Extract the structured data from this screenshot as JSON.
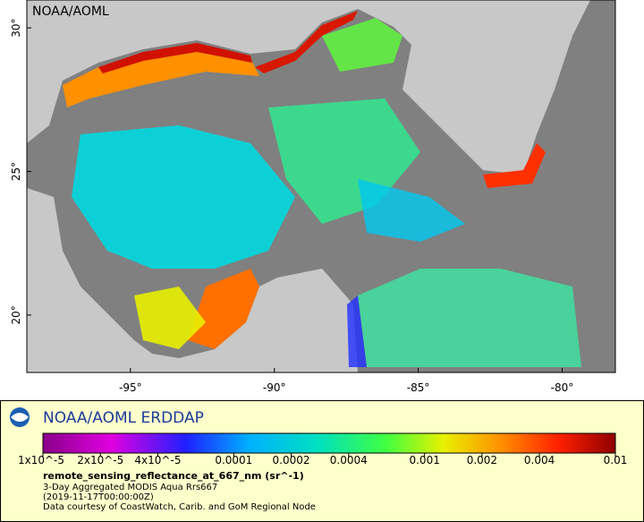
{
  "map": {
    "label": "NOAA/AOML",
    "lat_ticks": [
      {
        "value": 30,
        "label": "30°"
      },
      {
        "value": 25,
        "label": "25°"
      },
      {
        "value": 20,
        "label": "20°"
      }
    ],
    "lon_ticks": [
      {
        "value": -95,
        "label": "-95°"
      },
      {
        "value": -90,
        "label": "-90°"
      },
      {
        "value": -85,
        "label": "-85°"
      },
      {
        "value": -80,
        "label": "-80°"
      }
    ]
  },
  "legend": {
    "title": "NOAA/AOML ERDDAP",
    "colorbar": {
      "scale": "log",
      "ticks": [
        {
          "value": 1e-05,
          "label": "1x10^-5"
        },
        {
          "value": 2e-05,
          "label": "2x10^-5"
        },
        {
          "value": 4e-05,
          "label": "4x10^-5"
        },
        {
          "value": 0.0001,
          "label": "0.0001"
        },
        {
          "value": 0.0002,
          "label": "0.0002"
        },
        {
          "value": 0.0004,
          "label": "0.0004"
        },
        {
          "value": 0.001,
          "label": "0.001"
        },
        {
          "value": 0.002,
          "label": "0.002"
        },
        {
          "value": 0.004,
          "label": "0.004"
        },
        {
          "value": 0.01,
          "label": "0.01"
        }
      ]
    },
    "variable": "remote_sensing_reflectance_at_667_nm (sr^-1)",
    "lines": [
      "3-Day Aggregated MODIS Aqua Rrs667",
      "(2019-11-17T00:00:00Z)",
      "Data courtesy of CoastWatch, Carib. and GoM Regional Node"
    ]
  }
}
